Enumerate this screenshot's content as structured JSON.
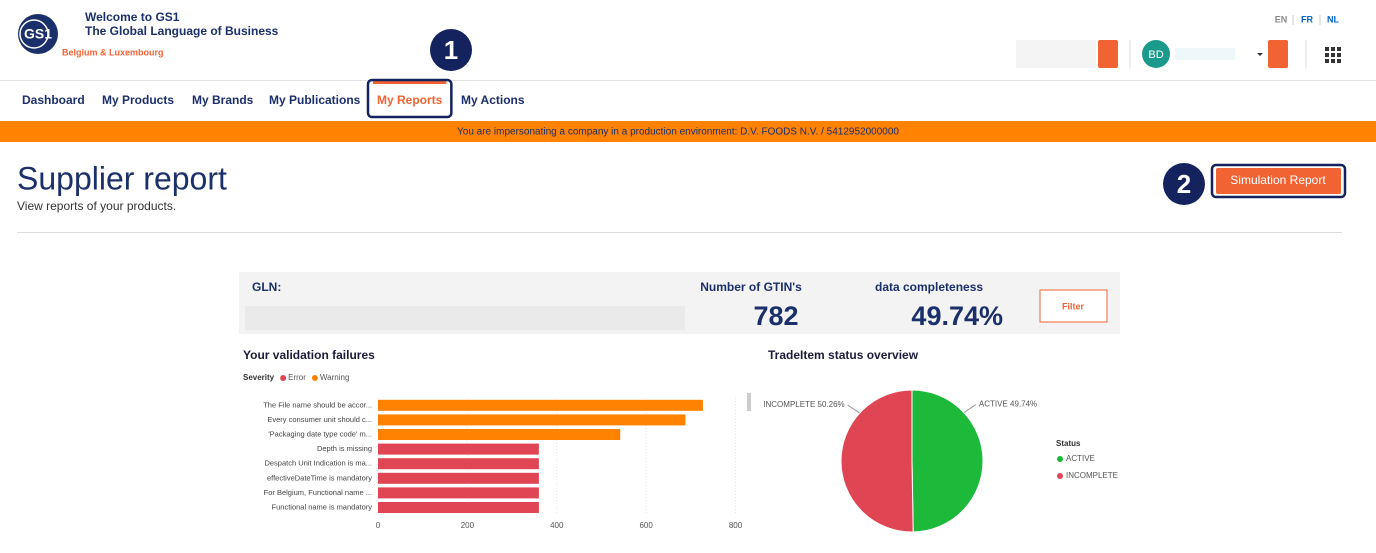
{
  "header": {
    "logo": "GS1",
    "welcome": "Welcome to GS1",
    "tagline": "The Global Language of Business",
    "region": "Belgium & Luxembourg",
    "languages": [
      "EN",
      "FR",
      "NL"
    ],
    "avatar": "BD"
  },
  "nav": {
    "items": [
      "Dashboard",
      "My Products",
      "My Brands",
      "My Publications",
      "My Reports",
      "My Actions"
    ],
    "active": 4
  },
  "banner": "You are impersonating a company in a production environment: D.V. FOODS N.V. / 5412952000000",
  "callouts": [
    "1",
    "2"
  ],
  "page": {
    "title": "Supplier report",
    "subtitle": "View reports of your products.",
    "button": "Simulation Report"
  },
  "report": {
    "gln_label": "GLN:",
    "gtin_label": "Number of GTIN's",
    "gtin_count": 782,
    "completeness_label": "data completeness",
    "completeness": "49.74%",
    "filter": "Filter"
  },
  "chart_data": [
    {
      "type": "bar",
      "orientation": "horizontal",
      "title": "Your validation failures",
      "legend_title": "Severity",
      "categories": [
        "The File name should be accor...",
        "Every consumer unit should c...",
        "'Packaging date type code' m...",
        "Depth is missing",
        "Despatch Unit Indication is ma...",
        "effectiveDateTime is mandatory",
        "For Belgium, Functional name ...",
        "Functional name is mandatory"
      ],
      "series": [
        {
          "name": "Error",
          "color": "#e04553",
          "values": [
            null,
            null,
            null,
            360,
            360,
            360,
            360,
            360
          ]
        },
        {
          "name": "Warning",
          "color": "#ff8200",
          "values": [
            727,
            688,
            542,
            null,
            null,
            null,
            null,
            null
          ]
        }
      ],
      "xlim": [
        0,
        810
      ],
      "xticks": [
        0,
        200,
        400,
        600,
        800
      ],
      "grid": true
    },
    {
      "type": "pie",
      "title": "TradeItem status overview",
      "legend_title": "Status",
      "categories": [
        "ACTIVE",
        "INCOMPLETE"
      ],
      "values": [
        49.74,
        50.26
      ],
      "value_labels": [
        "ACTIVE 49.74%",
        "INCOMPLETE 50.26%"
      ],
      "colors": [
        "#1db93a",
        "#e04553"
      ]
    }
  ]
}
